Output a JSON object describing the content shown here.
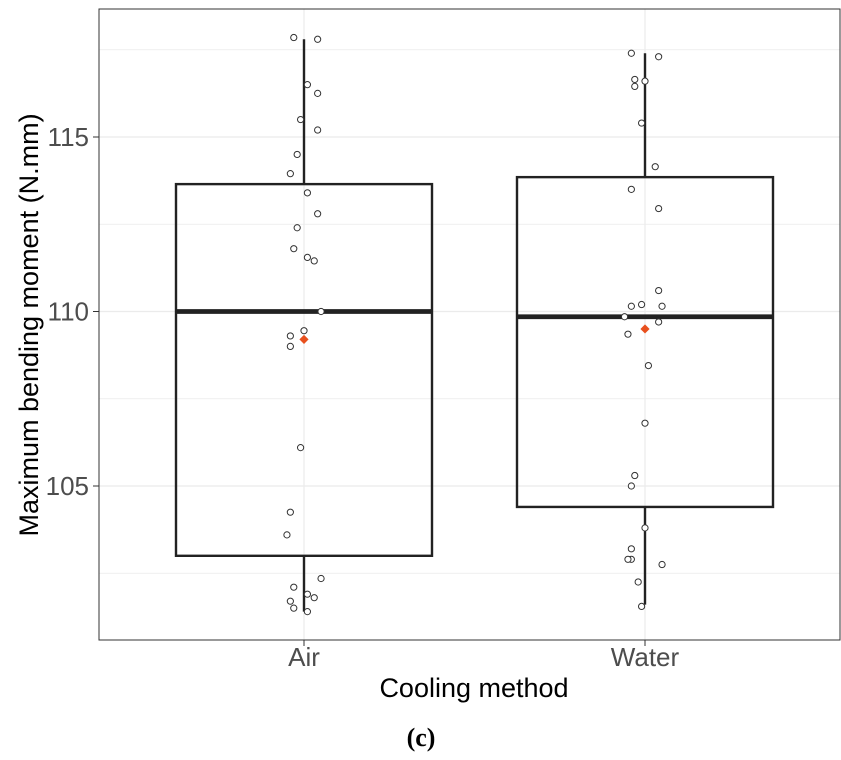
{
  "chart_data": {
    "type": "box",
    "categories": [
      "Air",
      "Water"
    ],
    "xlabel": "Cooling method",
    "ylabel": "Maximum bending moment (N.mm)",
    "ylim": [
      100.5,
      118.2
    ],
    "yticks": [
      105,
      110,
      115
    ],
    "grid": true,
    "colors": {
      "box": "#222222",
      "mean": "#e8501e",
      "grid": "#ebebeb",
      "points": "#333333"
    },
    "series": [
      {
        "name": "Air",
        "box": {
          "q1": 103.0,
          "median": 110.0,
          "q3": 113.65,
          "whisker_low": 101.4,
          "whisker_high": 117.8
        },
        "mean": 109.2,
        "points": [
          {
            "x": -0.03,
            "y": 117.85
          },
          {
            "x": 0.04,
            "y": 117.8
          },
          {
            "x": 0.01,
            "y": 116.5
          },
          {
            "x": 0.04,
            "y": 116.25
          },
          {
            "x": -0.01,
            "y": 115.5
          },
          {
            "x": 0.04,
            "y": 115.2
          },
          {
            "x": -0.02,
            "y": 114.5
          },
          {
            "x": -0.04,
            "y": 113.95
          },
          {
            "x": 0.01,
            "y": 113.4
          },
          {
            "x": 0.04,
            "y": 112.8
          },
          {
            "x": -0.02,
            "y": 112.4
          },
          {
            "x": -0.03,
            "y": 111.8
          },
          {
            "x": 0.01,
            "y": 111.55
          },
          {
            "x": 0.03,
            "y": 111.45
          },
          {
            "x": 0.05,
            "y": 110.0
          },
          {
            "x": 0.0,
            "y": 109.45
          },
          {
            "x": -0.04,
            "y": 109.3
          },
          {
            "x": -0.04,
            "y": 109.0
          },
          {
            "x": -0.01,
            "y": 106.1
          },
          {
            "x": -0.04,
            "y": 104.25
          },
          {
            "x": -0.05,
            "y": 103.6
          },
          {
            "x": 0.05,
            "y": 102.35
          },
          {
            "x": -0.03,
            "y": 102.1
          },
          {
            "x": 0.01,
            "y": 101.9
          },
          {
            "x": 0.03,
            "y": 101.8
          },
          {
            "x": -0.04,
            "y": 101.7
          },
          {
            "x": -0.03,
            "y": 101.5
          },
          {
            "x": 0.01,
            "y": 101.4
          }
        ]
      },
      {
        "name": "Water",
        "box": {
          "q1": 104.4,
          "median": 109.85,
          "q3": 113.85,
          "whisker_low": 101.6,
          "whisker_high": 117.4
        },
        "mean": 109.5,
        "points": [
          {
            "x": -0.04,
            "y": 117.4
          },
          {
            "x": 0.04,
            "y": 117.3
          },
          {
            "x": -0.03,
            "y": 116.65
          },
          {
            "x": 0.0,
            "y": 116.6
          },
          {
            "x": -0.03,
            "y": 116.45
          },
          {
            "x": -0.01,
            "y": 115.4
          },
          {
            "x": 0.03,
            "y": 114.15
          },
          {
            "x": -0.04,
            "y": 113.5
          },
          {
            "x": 0.04,
            "y": 112.95
          },
          {
            "x": 0.04,
            "y": 110.6
          },
          {
            "x": -0.04,
            "y": 110.15
          },
          {
            "x": -0.01,
            "y": 110.2
          },
          {
            "x": 0.05,
            "y": 110.15
          },
          {
            "x": -0.06,
            "y": 109.85
          },
          {
            "x": 0.04,
            "y": 109.7
          },
          {
            "x": -0.05,
            "y": 109.35
          },
          {
            "x": 0.01,
            "y": 108.45
          },
          {
            "x": 0.0,
            "y": 106.8
          },
          {
            "x": -0.03,
            "y": 105.3
          },
          {
            "x": -0.04,
            "y": 105.0
          },
          {
            "x": 0.0,
            "y": 103.8
          },
          {
            "x": -0.04,
            "y": 103.2
          },
          {
            "x": -0.04,
            "y": 102.9
          },
          {
            "x": -0.05,
            "y": 102.9
          },
          {
            "x": 0.05,
            "y": 102.75
          },
          {
            "x": -0.02,
            "y": 102.25
          },
          {
            "x": -0.01,
            "y": 101.55
          }
        ]
      }
    ]
  },
  "caption": "(c)"
}
